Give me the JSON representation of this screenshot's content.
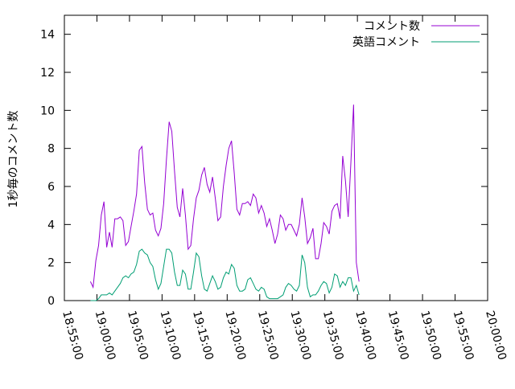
{
  "chart_data": {
    "type": "line",
    "title": "",
    "xlabel": "",
    "ylabel": "1秒毎のコメント数",
    "x_range": [
      "18:55:00",
      "20:00:00"
    ],
    "ylim": [
      0,
      15
    ],
    "x_ticks": [
      "18:55:00",
      "19:00:00",
      "19:05:00",
      "19:10:00",
      "19:15:00",
      "19:20:00",
      "19:25:00",
      "19:30:00",
      "19:35:00",
      "19:40:00",
      "19:45:00",
      "19:50:00",
      "19:55:00",
      "20:00:00"
    ],
    "y_ticks": [
      "0",
      "2",
      "4",
      "6",
      "8",
      "10",
      "12",
      "14"
    ],
    "legend_position": "top-right",
    "grid": false,
    "series": [
      {
        "name": "コメント数",
        "color": "#9400d3",
        "points": [
          [
            "18:59:00",
            1.0
          ],
          [
            "18:59:25",
            0.7
          ],
          [
            "18:59:50",
            2.1
          ],
          [
            "19:00:15",
            2.9
          ],
          [
            "19:00:40",
            4.5
          ],
          [
            "19:01:05",
            5.2
          ],
          [
            "19:01:30",
            2.8
          ],
          [
            "19:01:55",
            3.6
          ],
          [
            "19:02:20",
            2.8
          ],
          [
            "19:02:45",
            4.3
          ],
          [
            "19:03:10",
            4.3
          ],
          [
            "19:03:35",
            4.4
          ],
          [
            "19:04:00",
            4.2
          ],
          [
            "19:04:25",
            2.9
          ],
          [
            "19:04:50",
            3.1
          ],
          [
            "19:05:15",
            3.9
          ],
          [
            "19:05:40",
            4.7
          ],
          [
            "19:06:05",
            5.6
          ],
          [
            "19:06:30",
            7.9
          ],
          [
            "19:06:55",
            8.1
          ],
          [
            "19:07:20",
            6.2
          ],
          [
            "19:07:45",
            4.8
          ],
          [
            "19:08:10",
            4.5
          ],
          [
            "19:08:35",
            4.6
          ],
          [
            "19:09:00",
            3.7
          ],
          [
            "19:09:25",
            3.4
          ],
          [
            "19:09:50",
            3.8
          ],
          [
            "19:10:15",
            5.1
          ],
          [
            "19:10:40",
            7.4
          ],
          [
            "19:11:05",
            9.4
          ],
          [
            "19:11:30",
            8.9
          ],
          [
            "19:11:55",
            6.8
          ],
          [
            "19:12:20",
            4.9
          ],
          [
            "19:12:45",
            4.4
          ],
          [
            "19:13:10",
            5.9
          ],
          [
            "19:13:35",
            4.5
          ],
          [
            "19:14:00",
            2.7
          ],
          [
            "19:14:25",
            2.9
          ],
          [
            "19:14:50",
            4.3
          ],
          [
            "19:15:15",
            5.4
          ],
          [
            "19:15:40",
            5.8
          ],
          [
            "19:16:05",
            6.6
          ],
          [
            "19:16:30",
            7.0
          ],
          [
            "19:16:55",
            6.1
          ],
          [
            "19:17:20",
            5.7
          ],
          [
            "19:17:45",
            6.5
          ],
          [
            "19:18:10",
            5.4
          ],
          [
            "19:18:35",
            4.2
          ],
          [
            "19:19:00",
            4.4
          ],
          [
            "19:19:25",
            6.0
          ],
          [
            "19:19:50",
            7.1
          ],
          [
            "19:20:15",
            8.0
          ],
          [
            "19:20:40",
            8.4
          ],
          [
            "19:21:05",
            6.7
          ],
          [
            "19:21:30",
            4.8
          ],
          [
            "19:21:55",
            4.5
          ],
          [
            "19:22:20",
            5.1
          ],
          [
            "19:22:45",
            5.1
          ],
          [
            "19:23:10",
            5.2
          ],
          [
            "19:23:35",
            5.0
          ],
          [
            "19:24:00",
            5.6
          ],
          [
            "19:24:25",
            5.4
          ],
          [
            "19:24:50",
            4.6
          ],
          [
            "19:25:15",
            5.0
          ],
          [
            "19:25:40",
            4.6
          ],
          [
            "19:26:05",
            3.9
          ],
          [
            "19:26:30",
            4.3
          ],
          [
            "19:26:55",
            3.7
          ],
          [
            "19:27:20",
            3.0
          ],
          [
            "19:27:45",
            3.5
          ],
          [
            "19:28:10",
            4.5
          ],
          [
            "19:28:35",
            4.3
          ],
          [
            "19:29:00",
            3.7
          ],
          [
            "19:29:25",
            4.0
          ],
          [
            "19:29:50",
            4.0
          ],
          [
            "19:30:15",
            3.7
          ],
          [
            "19:30:40",
            3.4
          ],
          [
            "19:31:05",
            4.0
          ],
          [
            "19:31:30",
            5.4
          ],
          [
            "19:31:55",
            4.4
          ],
          [
            "19:32:20",
            3.0
          ],
          [
            "19:32:45",
            3.3
          ],
          [
            "19:33:10",
            3.8
          ],
          [
            "19:33:35",
            2.2
          ],
          [
            "19:34:00",
            2.2
          ],
          [
            "19:34:25",
            3.0
          ],
          [
            "19:34:50",
            4.1
          ],
          [
            "19:35:15",
            3.9
          ],
          [
            "19:35:40",
            3.5
          ],
          [
            "19:36:05",
            4.7
          ],
          [
            "19:36:30",
            5.0
          ],
          [
            "19:36:55",
            5.1
          ],
          [
            "19:37:20",
            4.3
          ],
          [
            "19:37:45",
            7.6
          ],
          [
            "19:38:10",
            6.3
          ],
          [
            "19:38:35",
            4.4
          ],
          [
            "19:39:00",
            7.3
          ],
          [
            "19:39:25",
            10.3
          ],
          [
            "19:39:50",
            2.0
          ],
          [
            "19:40:15",
            1.0
          ]
        ]
      },
      {
        "name": "英語コメント",
        "color": "#009e73",
        "points": [
          [
            "18:59:00",
            0.0
          ],
          [
            "18:59:25",
            0.0
          ],
          [
            "18:59:50",
            0.0
          ],
          [
            "19:00:15",
            0.1
          ],
          [
            "19:00:40",
            0.3
          ],
          [
            "19:01:05",
            0.3
          ],
          [
            "19:01:30",
            0.3
          ],
          [
            "19:01:55",
            0.4
          ],
          [
            "19:02:20",
            0.3
          ],
          [
            "19:02:45",
            0.5
          ],
          [
            "19:03:10",
            0.7
          ],
          [
            "19:03:35",
            0.9
          ],
          [
            "19:04:00",
            1.2
          ],
          [
            "19:04:25",
            1.3
          ],
          [
            "19:04:50",
            1.2
          ],
          [
            "19:05:15",
            1.4
          ],
          [
            "19:05:40",
            1.5
          ],
          [
            "19:06:05",
            1.9
          ],
          [
            "19:06:30",
            2.6
          ],
          [
            "19:06:55",
            2.7
          ],
          [
            "19:07:20",
            2.5
          ],
          [
            "19:07:45",
            2.4
          ],
          [
            "19:08:10",
            2.0
          ],
          [
            "19:08:35",
            1.8
          ],
          [
            "19:09:00",
            1.1
          ],
          [
            "19:09:25",
            0.6
          ],
          [
            "19:09:50",
            0.9
          ],
          [
            "19:10:15",
            1.8
          ],
          [
            "19:10:40",
            2.7
          ],
          [
            "19:11:05",
            2.7
          ],
          [
            "19:11:30",
            2.5
          ],
          [
            "19:11:55",
            1.5
          ],
          [
            "19:12:20",
            0.8
          ],
          [
            "19:12:45",
            0.8
          ],
          [
            "19:13:10",
            1.6
          ],
          [
            "19:13:35",
            1.4
          ],
          [
            "19:14:00",
            0.6
          ],
          [
            "19:14:25",
            0.6
          ],
          [
            "19:14:50",
            1.5
          ],
          [
            "19:15:15",
            2.5
          ],
          [
            "19:15:40",
            2.3
          ],
          [
            "19:16:05",
            1.3
          ],
          [
            "19:16:30",
            0.6
          ],
          [
            "19:16:55",
            0.5
          ],
          [
            "19:17:20",
            0.9
          ],
          [
            "19:17:45",
            1.3
          ],
          [
            "19:18:10",
            1.0
          ],
          [
            "19:18:35",
            0.6
          ],
          [
            "19:19:00",
            0.7
          ],
          [
            "19:19:25",
            1.2
          ],
          [
            "19:19:50",
            1.5
          ],
          [
            "19:20:15",
            1.4
          ],
          [
            "19:20:40",
            1.9
          ],
          [
            "19:21:05",
            1.7
          ],
          [
            "19:21:30",
            0.8
          ],
          [
            "19:21:55",
            0.5
          ],
          [
            "19:22:20",
            0.5
          ],
          [
            "19:22:45",
            0.6
          ],
          [
            "19:23:10",
            1.1
          ],
          [
            "19:23:35",
            1.2
          ],
          [
            "19:24:00",
            0.9
          ],
          [
            "19:24:25",
            0.6
          ],
          [
            "19:24:50",
            0.5
          ],
          [
            "19:25:15",
            0.7
          ],
          [
            "19:25:40",
            0.6
          ],
          [
            "19:26:05",
            0.2
          ],
          [
            "19:26:30",
            0.1
          ],
          [
            "19:26:55",
            0.1
          ],
          [
            "19:27:20",
            0.1
          ],
          [
            "19:27:45",
            0.1
          ],
          [
            "19:28:10",
            0.2
          ],
          [
            "19:28:35",
            0.3
          ],
          [
            "19:29:00",
            0.7
          ],
          [
            "19:29:25",
            0.9
          ],
          [
            "19:29:50",
            0.8
          ],
          [
            "19:30:15",
            0.6
          ],
          [
            "19:30:40",
            0.5
          ],
          [
            "19:31:05",
            0.8
          ],
          [
            "19:31:30",
            2.4
          ],
          [
            "19:31:55",
            2.0
          ],
          [
            "19:32:20",
            0.7
          ],
          [
            "19:32:45",
            0.2
          ],
          [
            "19:33:10",
            0.3
          ],
          [
            "19:33:35",
            0.3
          ],
          [
            "19:34:00",
            0.5
          ],
          [
            "19:34:25",
            0.8
          ],
          [
            "19:34:50",
            1.0
          ],
          [
            "19:35:15",
            0.9
          ],
          [
            "19:35:40",
            0.4
          ],
          [
            "19:36:05",
            0.7
          ],
          [
            "19:36:30",
            1.4
          ],
          [
            "19:36:55",
            1.3
          ],
          [
            "19:37:20",
            0.7
          ],
          [
            "19:37:45",
            1.0
          ],
          [
            "19:38:10",
            0.8
          ],
          [
            "19:38:35",
            1.2
          ],
          [
            "19:39:00",
            1.2
          ],
          [
            "19:39:25",
            0.5
          ],
          [
            "19:39:50",
            0.8
          ],
          [
            "19:40:15",
            0.3
          ]
        ]
      }
    ]
  }
}
